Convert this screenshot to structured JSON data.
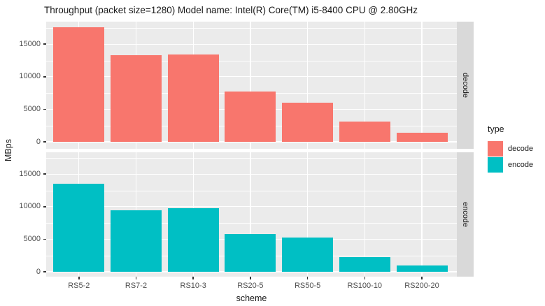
{
  "title": "Throughput (packet size=1280) Model name: Intel(R) Core(TM) i5-8400 CPU @ 2.80GHz",
  "axes": {
    "x_title": "scheme",
    "y_title": "MBps",
    "y_tick_labels": [
      "0",
      "5000",
      "10000",
      "15000"
    ]
  },
  "facets": [
    {
      "label": "decode"
    },
    {
      "label": "encode"
    }
  ],
  "legend": {
    "title": "type",
    "items": [
      {
        "label": "decode",
        "color": "#F8766D"
      },
      {
        "label": "encode",
        "color": "#00BFC4"
      }
    ]
  },
  "chart_data": {
    "type": "bar",
    "title": "Throughput (packet size=1280) Model name: Intel(R) Core(TM) i5-8400 CPU @ 2.80GHz",
    "xlabel": "scheme",
    "ylabel": "MBps",
    "facet_by": "type",
    "facet_labels": [
      "decode",
      "encode"
    ],
    "categories": [
      "RS5-2",
      "RS7-2",
      "RS10-3",
      "RS20-5",
      "RS50-5",
      "RS100-10",
      "RS200-20"
    ],
    "series": [
      {
        "name": "decode",
        "color": "#F8766D",
        "values": [
          17650,
          13350,
          13400,
          7700,
          6000,
          3070,
          1400
        ]
      },
      {
        "name": "encode",
        "color": "#00BFC4",
        "values": [
          13550,
          9450,
          9800,
          5750,
          5280,
          2250,
          1000
        ]
      }
    ],
    "y_major_ticks": [
      0,
      5000,
      10000,
      15000
    ],
    "y_minor_gridlines": [
      2500,
      7500,
      12500,
      17500
    ],
    "ylim": [
      -900,
      18500
    ],
    "grid": true,
    "legend_position": "right",
    "panel_bg": "#EBEBEB",
    "strip_bg": "#D9D9D9",
    "grid_color": "#FFFFFF"
  }
}
